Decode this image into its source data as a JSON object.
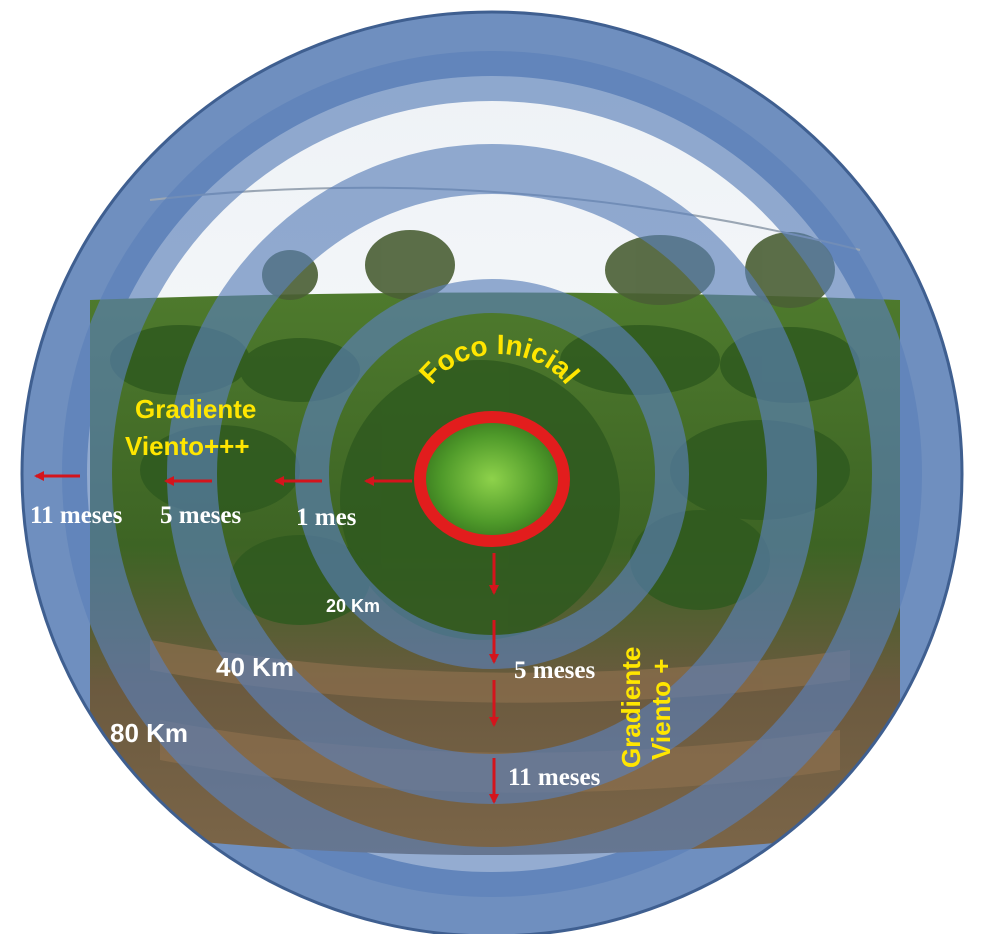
{
  "focus_label": "Foco Inicial",
  "gradient_west": {
    "line1": "Gradiente",
    "line2": "Viento+++"
  },
  "gradient_south": {
    "line1": "Gradiente",
    "line2": "Viento +"
  },
  "time_labels_west": [
    "11 meses",
    "5 meses",
    "1 mes"
  ],
  "time_labels_south": [
    "5 meses",
    "11 meses"
  ],
  "distance_labels": [
    "20 Km",
    "40 Km",
    "80 Km"
  ],
  "colors": {
    "ring_blue": "#6f8fbf",
    "ring_dark": "#3f5f90",
    "focus_red": "#e21d1d",
    "arrow_red": "#d4141c",
    "label_yellow": "#ffe600",
    "label_white": "#ffffff"
  }
}
